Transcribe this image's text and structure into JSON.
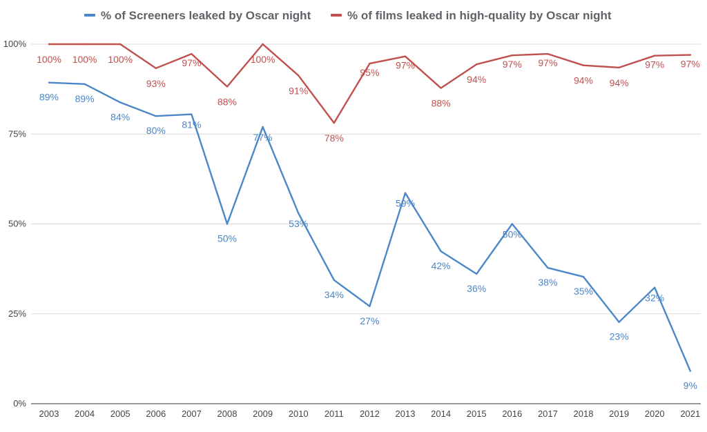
{
  "chart_data": {
    "type": "line",
    "categories": [
      "2003",
      "2004",
      "2005",
      "2006",
      "2007",
      "2008",
      "2009",
      "2010",
      "2011",
      "2012",
      "2013",
      "2014",
      "2015",
      "2016",
      "2017",
      "2018",
      "2019",
      "2020",
      "2021"
    ],
    "series": [
      {
        "name": "% of Screeners leaked by Oscar night",
        "color": "#4a86c8",
        "values": [
          89.3,
          88.9,
          83.8,
          80.0,
          80.5,
          50.0,
          77.0,
          53.0,
          34.4,
          27.1,
          58.6,
          42.4,
          36.1,
          50.0,
          37.8,
          35.3,
          22.7,
          32.3,
          9.1
        ],
        "labels": [
          "89%",
          "89%",
          "84%",
          "80%",
          "81%",
          "50%",
          "77%",
          "53%",
          "34%",
          "27%",
          "59%",
          "42%",
          "36%",
          "50%",
          "38%",
          "35%",
          "23%",
          "32%",
          "9%"
        ]
      },
      {
        "name": "% of films leaked in high-quality by Oscar night",
        "color": "#c0504d",
        "values": [
          100,
          100,
          100,
          93.3,
          97.3,
          88.2,
          100,
          91.3,
          78.1,
          94.6,
          96.6,
          87.8,
          94.4,
          96.9,
          97.3,
          94.1,
          93.5,
          96.8,
          97.0
        ],
        "labels": [
          "100%",
          "100%",
          "100%",
          "93%",
          "97%",
          "88%",
          "100%",
          "91%",
          "78%",
          "95%",
          "97%",
          "88%",
          "94%",
          "97%",
          "97%",
          "94%",
          "94%",
          "97%",
          "97%"
        ]
      }
    ],
    "y_ticks": [
      "0%",
      "25%",
      "50%",
      "75%",
      "100%"
    ],
    "ylim": [
      0,
      100
    ],
    "grid": true,
    "legend_position": "top"
  }
}
